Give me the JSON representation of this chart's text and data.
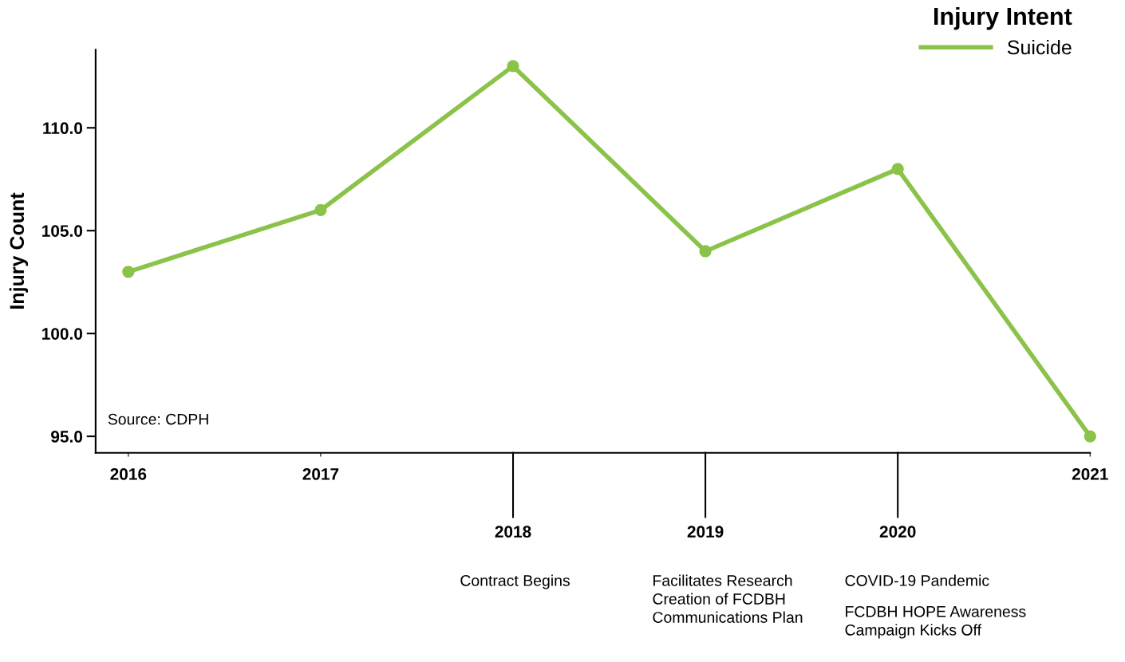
{
  "chart_data": {
    "type": "line",
    "ylabel": "Injury Count",
    "legend_title": "Injury Intent",
    "legend": "top right",
    "marker": "circle",
    "line_style": "solid",
    "grid": false,
    "categories": [
      "2016",
      "2017",
      "2018",
      "2019",
      "2020",
      "2021"
    ],
    "series": [
      {
        "name": "Suicide",
        "color": "#8bc34a",
        "values": [
          103,
          106,
          113,
          104,
          108,
          95
        ]
      }
    ],
    "ylim": [
      94.2,
      113.8
    ],
    "yticks": [
      {
        "value": 95,
        "label": "95.0"
      },
      {
        "value": 100,
        "label": "100.0"
      },
      {
        "value": 105,
        "label": "105.0"
      },
      {
        "value": 110,
        "label": "110.0"
      }
    ],
    "annotations": [
      "Source: CDPH",
      "Contract Begins",
      "Facilitates Research\nCreation of FCDBH\nCommunications Plan",
      "COVID-19 Pandemic",
      "FCDBH HOPE Awareness\nCampaign Kicks Off"
    ]
  }
}
